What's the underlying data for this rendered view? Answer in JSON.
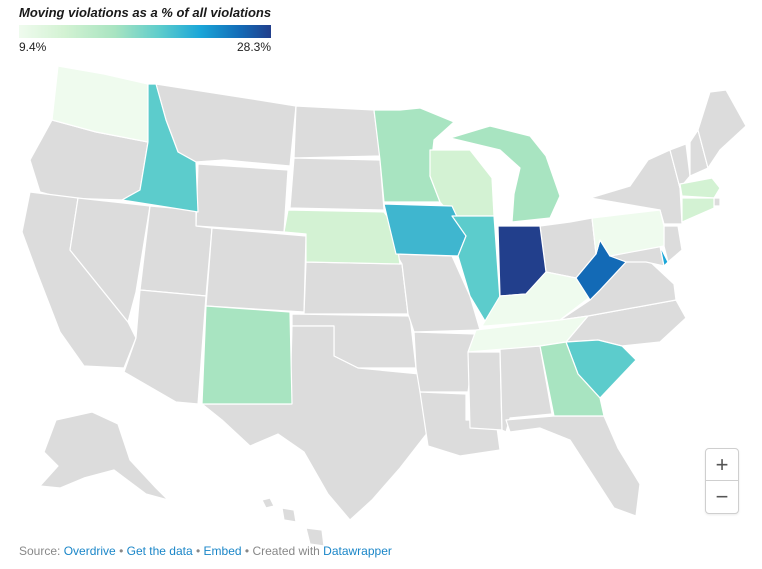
{
  "legend": {
    "title": "Moving violations as a % of all violations",
    "min_label": "9.4%",
    "max_label": "28.3%"
  },
  "scale_colors": {
    "lowest": "#effbee",
    "low": "#d3f2d3",
    "mid_low": "#a8e4c1",
    "mid": "#5ccccc",
    "mid_high": "#1aa6d8",
    "high": "#136ab6",
    "highest": "#223f8c",
    "no_data": "#dcdcdc"
  },
  "states": {
    "WA": "#effbee",
    "ID": "#5ccccc",
    "MN": "#a8e4c1",
    "WI": "#d3f2d3",
    "MI": "#a8e4c1",
    "NE": "#d3f2d3",
    "IA": "#3fb6cf",
    "IL": "#5ccccc",
    "IN": "#223f8c",
    "KY": "#effbee",
    "TN": "#effbee",
    "WV": "#136ab6",
    "DE": "#1aa6d8",
    "PA": "#effbee",
    "NM": "#a8e4c1",
    "SC": "#5ccccc",
    "GA": "#a8e4c1",
    "MA": "#d3f2d3",
    "CT": "#d3f2d3"
  },
  "zoom": {
    "in_label": "+",
    "out_label": "−"
  },
  "footer": {
    "source_prefix": "Source: ",
    "source_link": "Overdrive",
    "get_data": "Get the data",
    "embed": "Embed",
    "created_with": "Created with ",
    "tool": "Datawrapper",
    "separator": "•"
  }
}
